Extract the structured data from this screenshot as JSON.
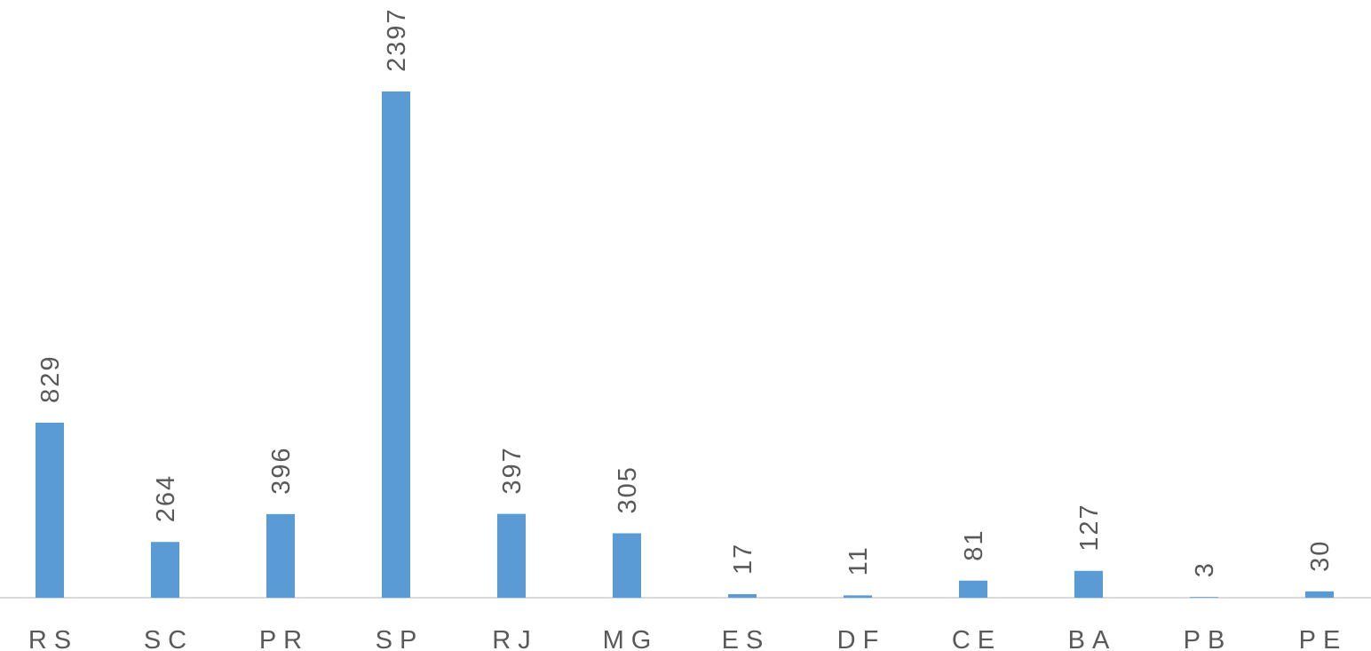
{
  "chart_data": {
    "type": "bar",
    "categories": [
      "RS",
      "SC",
      "PR",
      "SP",
      "RJ",
      "MG",
      "ES",
      "DF",
      "CE",
      "BA",
      "PB",
      "PE"
    ],
    "values": [
      829,
      264,
      396,
      2397,
      397,
      305,
      17,
      11,
      81,
      127,
      3,
      30
    ],
    "color": "#5b9bd5"
  }
}
